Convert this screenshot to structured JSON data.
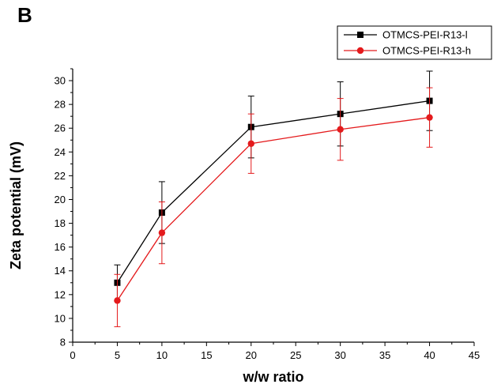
{
  "panel_label": "B",
  "chart_data": {
    "type": "line",
    "xlabel": "w/w ratio",
    "ylabel": "Zeta potential (mV)",
    "xlim": [
      0,
      45
    ],
    "ylim": [
      8,
      31
    ],
    "x_ticks": [
      0,
      5,
      10,
      15,
      20,
      25,
      30,
      35,
      40,
      45
    ],
    "y_ticks": [
      8,
      10,
      12,
      14,
      16,
      18,
      20,
      22,
      24,
      26,
      28,
      30
    ],
    "legend_position": "top-right",
    "x": [
      5,
      10,
      20,
      30,
      40
    ],
    "series": [
      {
        "name": "OTMCS-PEI-R13-l",
        "color": "#000000",
        "marker": "square",
        "values": [
          13.0,
          18.9,
          26.1,
          27.2,
          28.3
        ],
        "errors": [
          1.5,
          2.6,
          2.6,
          2.7,
          2.5
        ]
      },
      {
        "name": "OTMCS-PEI-R13-h",
        "color": "#e41a1c",
        "marker": "circle",
        "values": [
          11.5,
          17.2,
          24.7,
          25.9,
          26.9
        ],
        "errors": [
          2.2,
          2.6,
          2.5,
          2.6,
          2.5
        ]
      }
    ]
  }
}
